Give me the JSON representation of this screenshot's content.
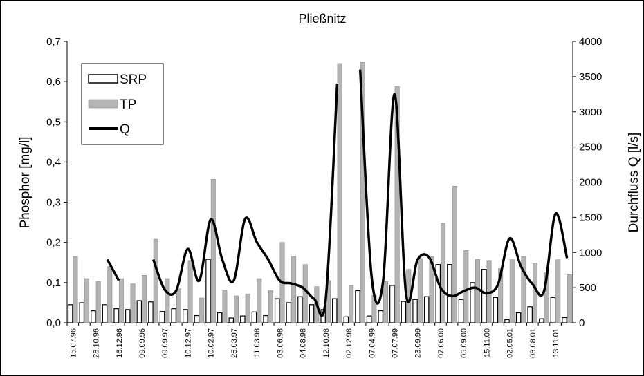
{
  "chart_data": {
    "type": "bar_line",
    "title": "Pließnitz",
    "ylabel": "Phosphor [mg/l]",
    "y2label": "Durchfluss Q [l/s]",
    "categories": [
      "15.07.96",
      null,
      "28.10.96",
      null,
      "16.12.96",
      null,
      "09.09.96",
      null,
      "09.09.97",
      null,
      "10.12.97",
      null,
      "10.02.97",
      null,
      "25.03.97",
      null,
      "11.03.98",
      null,
      "03.06.98",
      null,
      "04.08.98",
      null,
      "12.10.98",
      null,
      "02.12.98",
      null,
      "07.04.99",
      null,
      "07.07.99",
      null,
      "23.09.99",
      null,
      "07.06.00",
      null,
      "05.09.00",
      null,
      "15.11.00",
      null,
      "02.05.01",
      null,
      "08.08.01",
      null,
      "13.11.01",
      null
    ],
    "series": [
      {
        "name": "SRP",
        "color": "#ffffff",
        "values": [
          0.045,
          0.05,
          0.03,
          0.045,
          0.035,
          0.033,
          0.055,
          0.052,
          0.028,
          0.035,
          0.033,
          0.018,
          0.158,
          0.025,
          0.012,
          0.017,
          0.027,
          0.018,
          0.06,
          0.05,
          0.065,
          0.045,
          0.033,
          0.06,
          0.015,
          0.08,
          0.017,
          0.03,
          0.093,
          0.053,
          0.058,
          0.065,
          0.145,
          0.145,
          0.058,
          0.1,
          0.133,
          0.063,
          0.008,
          0.025,
          0.04,
          0.01,
          0.063,
          0.013
        ]
      },
      {
        "name": "TP",
        "color": "#b4b4b4",
        "values": [
          0.165,
          0.11,
          0.103,
          0.14,
          0.11,
          0.097,
          0.118,
          0.208,
          0.11,
          0.085,
          0.155,
          0.062,
          0.357,
          0.08,
          0.067,
          0.072,
          0.11,
          0.08,
          0.2,
          0.165,
          0.145,
          0.09,
          0.105,
          0.645,
          0.093,
          0.648,
          0.068,
          0.103,
          0.588,
          0.133,
          0.16,
          0.165,
          0.248,
          0.34,
          0.18,
          0.158,
          0.155,
          0.135,
          0.157,
          0.165,
          0.147,
          0.125,
          0.157,
          0.12
        ]
      },
      {
        "name": "Q",
        "color": "#000000",
        "axis": "y2",
        "values": [
          null,
          null,
          null,
          900,
          600,
          null,
          null,
          900,
          470,
          460,
          1050,
          600,
          1470,
          900,
          600,
          1480,
          1150,
          900,
          600,
          560,
          500,
          340,
          330,
          3400,
          null,
          3600,
          650,
          600,
          3250,
          400,
          900,
          930,
          500,
          380,
          450,
          500,
          420,
          550,
          1200,
          800,
          550,
          450,
          1550,
          920
        ]
      }
    ],
    "ylim": [
      0,
      0.7
    ],
    "yticks": [
      {
        "value": 0,
        "label": "0,0"
      },
      {
        "value": 0.1,
        "label": "0,1"
      },
      {
        "value": 0.2,
        "label": "0,2"
      },
      {
        "value": 0.3,
        "label": "0,3"
      },
      {
        "value": 0.4,
        "label": "0,4"
      },
      {
        "value": 0.5,
        "label": "0,5"
      },
      {
        "value": 0.6,
        "label": "0,6"
      },
      {
        "value": 0.7,
        "label": "0,7"
      }
    ],
    "y2lim": [
      0,
      4000
    ],
    "y2ticks": [
      0,
      500,
      1000,
      1500,
      2000,
      2500,
      3000,
      3500,
      4000
    ],
    "legend": "upper left"
  }
}
